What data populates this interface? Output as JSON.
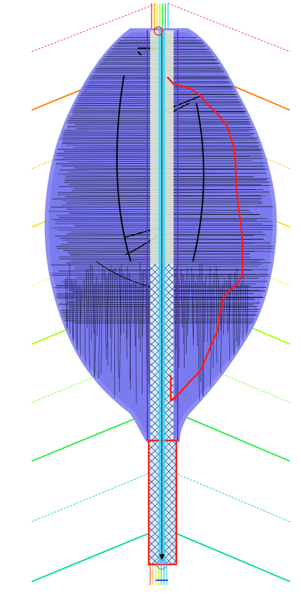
{
  "figure": {
    "kind": "path-planning-visualization",
    "background": "#ffffff",
    "colors": {
      "explored_region": "#7b7bf0",
      "search_tree": "#000000",
      "planned_path": "#ff1a1a",
      "corridor_fill": "#bfe8ff",
      "corridor_center": "#2fd6ff",
      "corridor_edge": "#6633cc",
      "start_marker": "#ff2a2a",
      "goal_marker": "#3344ff",
      "grid_hatch": "#223366"
    },
    "contour_palette": [
      "#ff3b3b",
      "#ff7a00",
      "#ffb300",
      "#ffe000",
      "#e0ff00",
      "#a8ff00",
      "#66ff22",
      "#22ee44",
      "#00e066",
      "#00d9a0"
    ],
    "layers": [
      "contour-lines",
      "explored-region",
      "search-tree",
      "corridor",
      "planned-path",
      "start-marker",
      "goal-marker"
    ]
  }
}
